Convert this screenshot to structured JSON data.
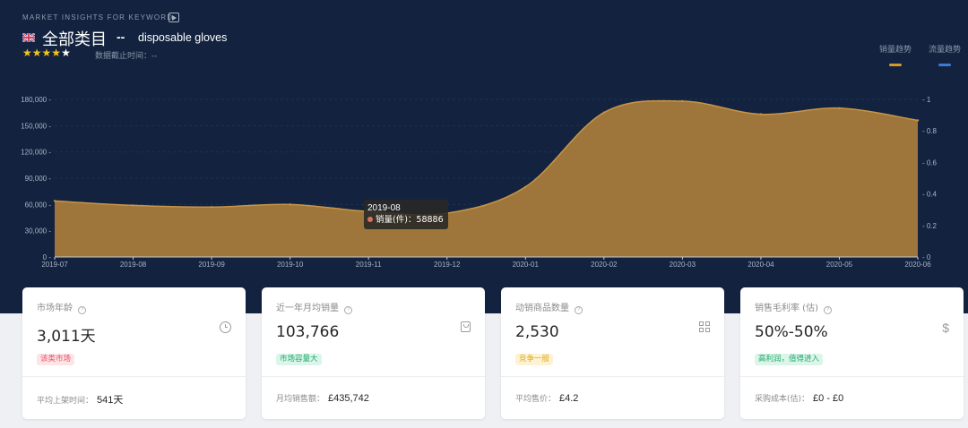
{
  "header": {
    "eyebrow": "MARKET INSIGHTS FOR KEYWORD",
    "category": "全部类目",
    "separator": "--",
    "keyword": "disposable gloves",
    "rating": 4,
    "rating_max": 5,
    "data_date": "数据截止时间：--"
  },
  "legend": {
    "sales_label": "销量趋势",
    "sales_color": "#d79a2a",
    "traffic_label": "流量趋势",
    "traffic_color": "#3a7bd5"
  },
  "chart_data": {
    "type": "area",
    "x": [
      "2019-07",
      "2019-08",
      "2019-09",
      "2019-10",
      "2019-11",
      "2019-12",
      "2020-01",
      "2020-02",
      "2020-03",
      "2020-04",
      "2020-05",
      "2020-06"
    ],
    "series": [
      {
        "name": "销量(件)",
        "axis": "left",
        "color": "#a3783a",
        "values": [
          64000,
          58886,
          57000,
          60000,
          52000,
          50000,
          80000,
          165000,
          178000,
          163000,
          170000,
          156000
        ]
      }
    ],
    "y_left": {
      "ticks": [
        "0",
        "30,000",
        "60,000",
        "90,000",
        "120,000",
        "150,000",
        "180,000"
      ],
      "lim": [
        0,
        180000
      ]
    },
    "y_right": {
      "ticks": [
        "0",
        "0.2",
        "0.4",
        "0.6",
        "0.8",
        "1"
      ],
      "lim": [
        0,
        1
      ]
    },
    "grid": true
  },
  "tooltip": {
    "date": "2019-08",
    "label": "销量(件)：",
    "value": "58886"
  },
  "cards": [
    {
      "label": "市场年龄",
      "value": "3,011天",
      "icon": "clock-icon",
      "tag": "该类市场",
      "tag_style": "red",
      "foot_label": "平均上架时间：",
      "foot_value": "541天"
    },
    {
      "label": "近一年月均销量",
      "value": "103,766",
      "icon": "bag-icon",
      "tag": "市场容量大",
      "tag_style": "green",
      "foot_label": "月均销售额：",
      "foot_value": "£435,742"
    },
    {
      "label": "动销商品数量",
      "value": "2,530",
      "icon": "grid-icon",
      "tag": "竞争一般",
      "tag_style": "yellow",
      "foot_label": "平均售价：",
      "foot_value": "£4.2"
    },
    {
      "label": "销售毛利率 (估)",
      "value": "50%-50%",
      "icon": "dollar-icon",
      "tag": "高利润，值得进入",
      "tag_style": "green",
      "foot_label": "采购成本(估)：",
      "foot_value": "£0 - £0"
    }
  ]
}
